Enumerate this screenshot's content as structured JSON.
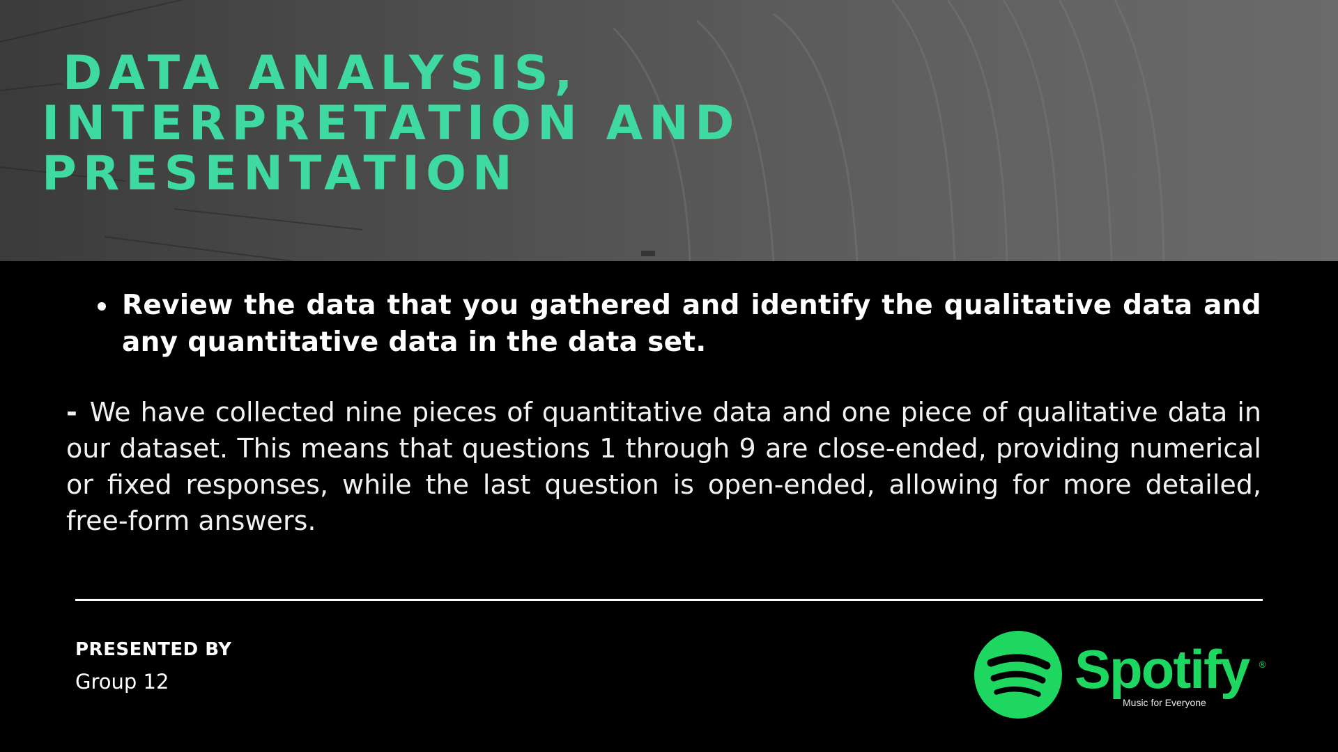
{
  "header": {
    "title_line1": "DATA ANALYSIS,",
    "title_line2": "INTERPRETATION AND",
    "title_line3": "PRESENTATION"
  },
  "bullet": {
    "text": "Review the data that you gathered and identify the qualitative data and any quantitative data in the data set."
  },
  "paragraph": {
    "dash": "-",
    "text": "We have collected nine pieces of quantitative data and one piece of qualitative data in our dataset. This means that questions 1 through 9 are close-ended, providing numerical or fixed responses, while the last question is open-ended, allowing for more detailed, free-form answers."
  },
  "footer": {
    "presented_by_label": "PRESENTED BY",
    "presenter": "Group 12"
  },
  "logo": {
    "wordmark": "Spotify",
    "registered": "®",
    "tagline": "Music for Everyone",
    "icon": "spotify-icon"
  },
  "colors": {
    "title": "#3fdaa2",
    "spotify_green": "#1ed760",
    "background": "#000000"
  }
}
